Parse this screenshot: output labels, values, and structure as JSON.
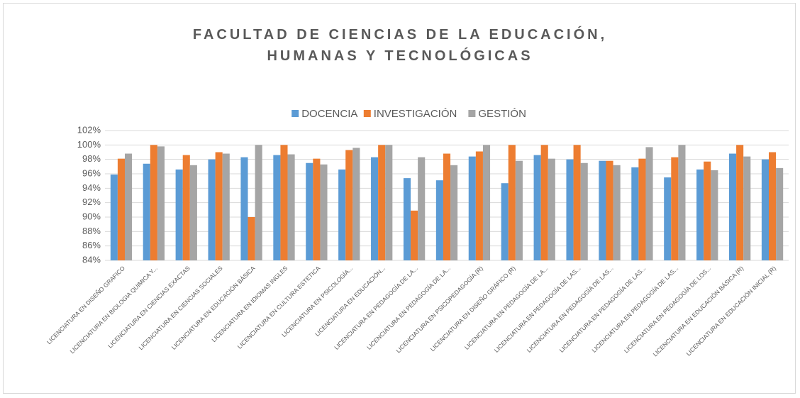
{
  "chart_data": {
    "type": "bar",
    "title": "FACULTAD DE CIENCIAS DE LA EDUCACIÓN, HUMANAS Y TECNOLÓGICAS",
    "categories": [
      "LICENCIATURA EN DISEÑO GRAFICO",
      "LICENCIATURA EN BIOLOGIA QUIMICA Y...",
      "LICENCIATURA EN CIENCIAS EXACTAS",
      "LICENCIATURA EN CIENCIAS SOCIALES",
      "LICENCIATURA EN EDUCACIÓN BÁSICA",
      "LICENCIATURA EN IDIOMAS INGLES",
      "LICENCIATURA EN CULTURA ESTETICA",
      "LICENCIATURA EN PSICOLOGÍA...",
      "LICENCIATURA EN EDUCACIÓN...",
      "LICENCIATURA EN PEDAGOGÍA DE LA...",
      "LICENCIATURA EN PEDAGOGÍA DE LA...",
      "LICENCIATURA EN PSICOPEDAGOGÍA (R)",
      "LICENCIATURA EN DISEÑO GRÁFICO (R)",
      "LICENCIATURA EN PEDAGOGÍA DE LA...",
      "LICENCIATURA EN PEDAGOGÍA DE LAS...",
      "LICENCIATURA EN PEDAGOGÍA DE LAS...",
      "LICENCIATURA EN PEDAGOGÍA DE LAS...",
      "LICENCIATURA EN PEDAGOGÍA DE LAS...",
      "LICENCIATURA EN PEDAGOGÍA DE LOS...",
      "LICENCIATURA EN EDUCACIÓN BÁSICA (R)",
      "LICENCIATURA EN EDUCACIÓN INICIAL (R)"
    ],
    "series": [
      {
        "name": "DOCENCIA",
        "color": "#5b9bd5",
        "values": [
          95.9,
          97.4,
          96.6,
          98.0,
          98.3,
          98.6,
          97.5,
          96.6,
          98.3,
          95.4,
          95.1,
          98.4,
          94.7,
          98.6,
          98.0,
          97.8,
          96.9,
          95.5,
          96.6,
          98.8,
          98.0
        ]
      },
      {
        "name": "INVESTIGACIÓN",
        "color": "#ed7d31",
        "values": [
          98.1,
          100,
          98.6,
          99.0,
          90.0,
          100,
          98.1,
          99.3,
          100,
          90.9,
          98.8,
          99.1,
          100,
          100,
          100,
          97.8,
          98.1,
          98.3,
          97.7,
          100,
          99.0
        ]
      },
      {
        "name": "GESTIÓN",
        "color": "#a5a5a5",
        "values": [
          98.8,
          99.8,
          97.2,
          98.8,
          100,
          98.7,
          97.3,
          99.6,
          100,
          98.3,
          97.2,
          100,
          97.8,
          98.1,
          97.5,
          97.2,
          99.7,
          100,
          96.5,
          98.4,
          96.8
        ]
      }
    ],
    "ylim": [
      84,
      102
    ],
    "yticks": [
      {
        "value": 84,
        "label": "84%"
      },
      {
        "value": 86,
        "label": "86%"
      },
      {
        "value": 88,
        "label": "88%"
      },
      {
        "value": 90,
        "label": "90%"
      },
      {
        "value": 92,
        "label": "92%"
      },
      {
        "value": 94,
        "label": "94%"
      },
      {
        "value": 96,
        "label": "96%"
      },
      {
        "value": 98,
        "label": "98%"
      },
      {
        "value": 100,
        "label": "100%"
      },
      {
        "value": 102,
        "label": "102%"
      }
    ],
    "grid": true,
    "legend": "top"
  }
}
